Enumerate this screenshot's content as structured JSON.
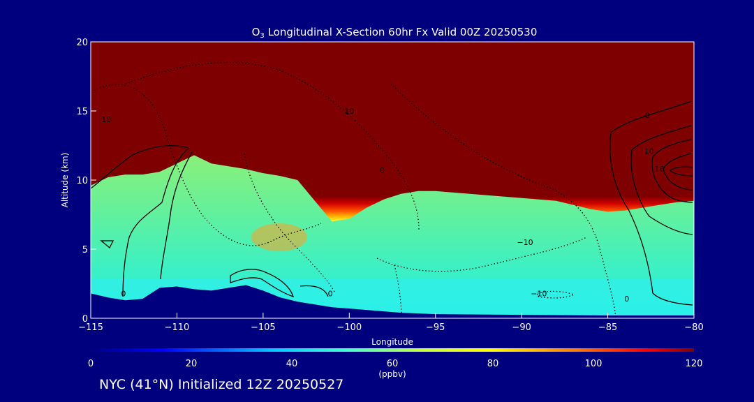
{
  "chart_data": {
    "type": "heatmap",
    "title_prefix": "O",
    "title_subscript": "3",
    "title_rest": " Longitudinal X-Section 60hr  Fx Valid 00Z 20250530",
    "title": "O3 Longitudinal X-Section 60hr  Fx Valid 00Z 20250530",
    "xlabel": "Longitude",
    "ylabel": "Altitude (km)",
    "xlim": [
      -115,
      -80
    ],
    "ylim": [
      0,
      20
    ],
    "x_ticks": [
      -115,
      -110,
      -105,
      -100,
      -95,
      -90,
      -85,
      -80
    ],
    "x_tick_labels": [
      "−115",
      "−110",
      "−105",
      "−100",
      "−95",
      "−90",
      "−85",
      "−80"
    ],
    "y_ticks": [
      0,
      5,
      10,
      15,
      20
    ],
    "y_tick_labels": [
      "0",
      "5",
      "10",
      "15",
      "20"
    ],
    "colorbar": {
      "label": "(ppbv)",
      "min": 0,
      "max": 120,
      "ticks": [
        0,
        20,
        40,
        60,
        80,
        100,
        120
      ],
      "tick_labels": [
        "0",
        "20",
        "40",
        "60",
        "80",
        "100",
        "120"
      ]
    },
    "tropopause_km": [
      [
        -115,
        9.6
      ],
      [
        -114,
        10.2
      ],
      [
        -113,
        10.4
      ],
      [
        -112,
        10.4
      ],
      [
        -111,
        10.6
      ],
      [
        -110,
        11.2
      ],
      [
        -109,
        11.8
      ],
      [
        -108,
        11.2
      ],
      [
        -107,
        11.0
      ],
      [
        -106,
        10.8
      ],
      [
        -105,
        10.5
      ],
      [
        -104,
        10.3
      ],
      [
        -103,
        10.0
      ],
      [
        -102,
        8.5
      ],
      [
        -101,
        7.0
      ],
      [
        -100,
        7.2
      ],
      [
        -99,
        8.0
      ],
      [
        -98,
        8.6
      ],
      [
        -97,
        9.0
      ],
      [
        -96,
        9.2
      ],
      [
        -95,
        9.2
      ],
      [
        -94,
        9.1
      ],
      [
        -93,
        9.0
      ],
      [
        -92,
        8.9
      ],
      [
        -91,
        8.8
      ],
      [
        -90,
        8.7
      ],
      [
        -89,
        8.6
      ],
      [
        -88,
        8.5
      ],
      [
        -87,
        8.2
      ],
      [
        -86,
        7.9
      ],
      [
        -85,
        7.7
      ],
      [
        -84,
        7.8
      ],
      [
        -83,
        8.0
      ],
      [
        -82,
        8.2
      ],
      [
        -81,
        8.4
      ],
      [
        -80,
        8.5
      ]
    ],
    "terrain_km": [
      [
        -115,
        1.8
      ],
      [
        -114,
        1.5
      ],
      [
        -113,
        1.3
      ],
      [
        -112,
        1.4
      ],
      [
        -111,
        2.2
      ],
      [
        -110,
        2.3
      ],
      [
        -109,
        2.1
      ],
      [
        -108,
        2.0
      ],
      [
        -107,
        2.2
      ],
      [
        -106,
        2.4
      ],
      [
        -105,
        2.0
      ],
      [
        -104,
        1.5
      ],
      [
        -103,
        1.2
      ],
      [
        -102,
        1.0
      ],
      [
        -101,
        0.8
      ],
      [
        -100,
        0.7
      ],
      [
        -99,
        0.6
      ],
      [
        -98,
        0.5
      ],
      [
        -97,
        0.4
      ],
      [
        -96,
        0.35
      ],
      [
        -95,
        0.3
      ],
      [
        -90,
        0.25
      ],
      [
        -85,
        0.2
      ],
      [
        -80,
        0.2
      ]
    ],
    "contour_labels": [
      {
        "text": "10",
        "lon": -114.1,
        "alt": 14.2
      },
      {
        "text": "10",
        "lon": -100.0,
        "alt": 14.8
      },
      {
        "text": "−10",
        "lon": -89.8,
        "alt": 5.3
      },
      {
        "text": "−10",
        "lon": -89.0,
        "alt": 1.6
      },
      {
        "text": "0",
        "lon": -113.1,
        "alt": 1.6
      },
      {
        "text": "0",
        "lon": -101.1,
        "alt": 1.6
      },
      {
        "text": "0",
        "lon": -98.1,
        "alt": 10.5
      },
      {
        "text": "0",
        "lon": -82.7,
        "alt": 14.5
      },
      {
        "text": "0",
        "lon": -83.9,
        "alt": 1.2
      },
      {
        "text": "10",
        "lon": -82.6,
        "alt": 11.9
      },
      {
        "text": "10",
        "lon": -82.0,
        "alt": 10.6
      }
    ],
    "annotation": "NYC (41°N) Initialized 12Z 20250527"
  }
}
